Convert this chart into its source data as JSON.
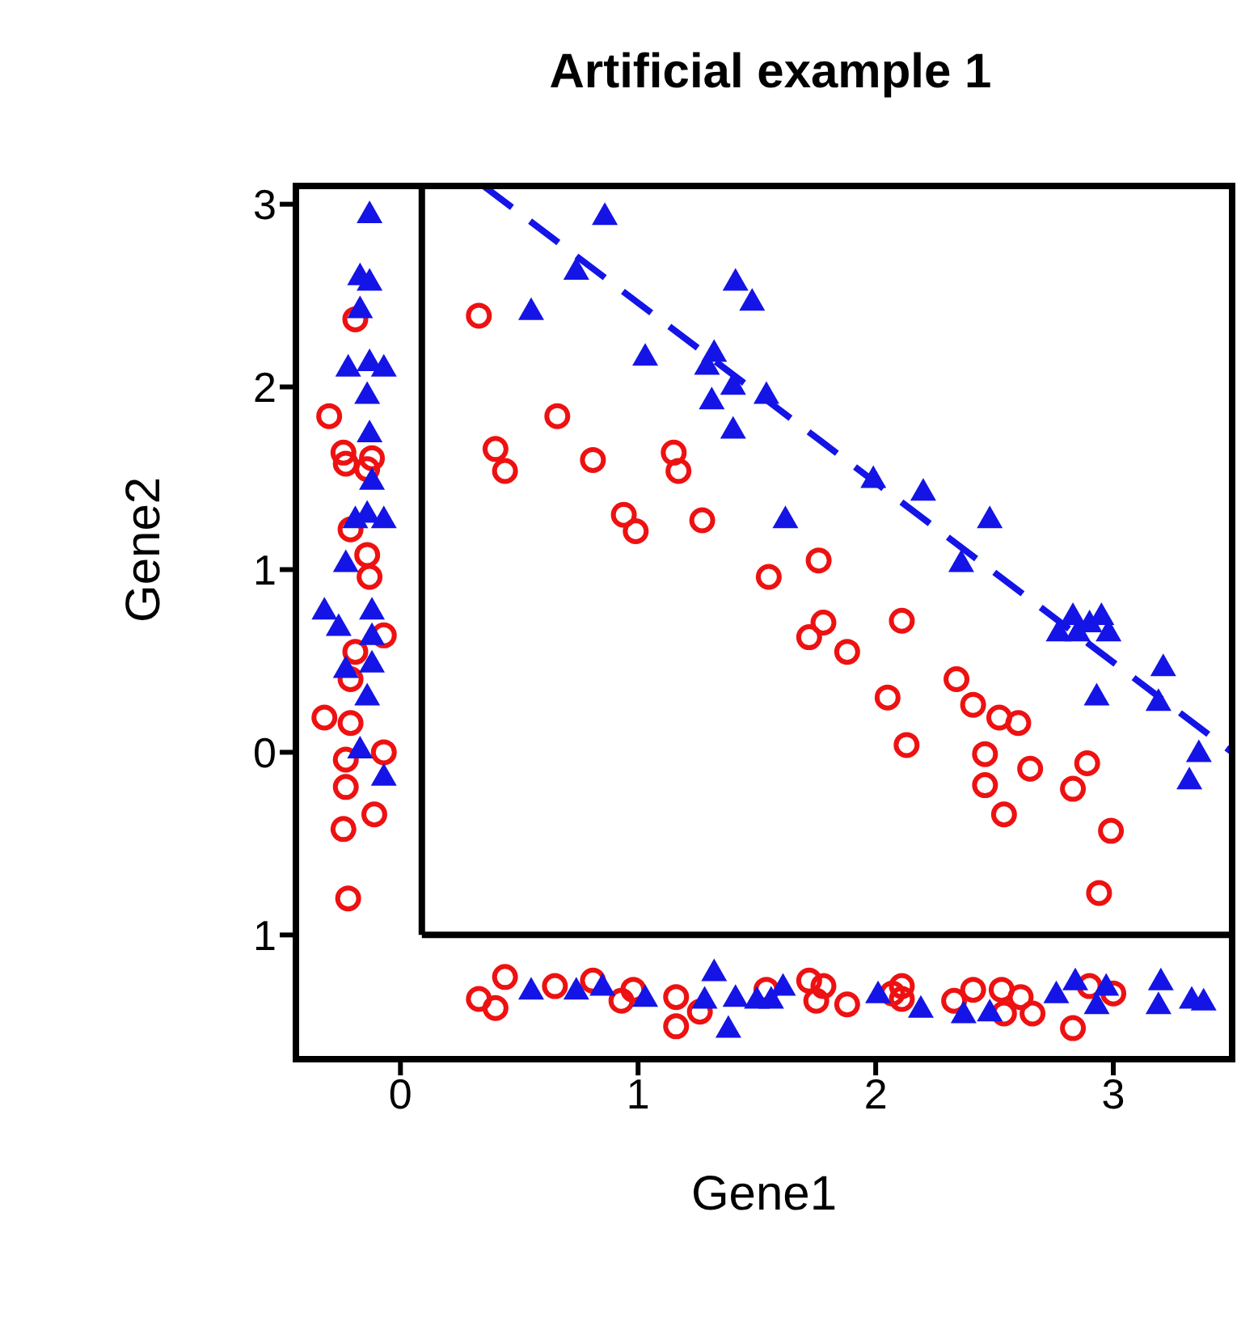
{
  "chart_data": {
    "type": "scatter",
    "title": "Artificial example 1",
    "xlabel": "Gene1",
    "ylabel": "Gene2",
    "xlim": [
      -0.44,
      3.5
    ],
    "ylim": [
      -1.68,
      3.1
    ],
    "xticks": [
      0,
      1,
      2,
      3
    ],
    "yticks": [
      {
        "value": -1,
        "label": "1"
      },
      0,
      1,
      2,
      3
    ],
    "grid": false,
    "legend": false,
    "ref_lines": [
      {
        "axis": "y",
        "value": -1,
        "color": "#000000"
      },
      {
        "axis": "x",
        "value": 0.09,
        "color": "#000000"
      }
    ],
    "series": [
      {
        "type": "scatter",
        "marker": "circle",
        "color": "#ee1111",
        "x": [
          0.33,
          0.4,
          0.44,
          0.66,
          0.81,
          0.94,
          0.99,
          1.15,
          1.17,
          1.27,
          1.55,
          1.76,
          1.78,
          1.72,
          1.88,
          2.11,
          2.34,
          2.05,
          2.41,
          2.13,
          2.52,
          2.6,
          2.46,
          2.65,
          2.46,
          2.54,
          2.89,
          2.83,
          2.99,
          2.94
        ],
        "values": [
          2.39,
          1.66,
          1.54,
          1.84,
          1.6,
          1.3,
          1.21,
          1.64,
          1.54,
          1.27,
          0.96,
          1.05,
          0.71,
          0.63,
          0.55,
          0.72,
          0.4,
          0.3,
          0.26,
          0.04,
          0.19,
          0.16,
          -0.01,
          -0.09,
          -0.18,
          -0.34,
          -0.06,
          -0.2,
          -0.43,
          -0.77
        ]
      },
      {
        "type": "scatter",
        "marker": "triangle",
        "color": "#1414e6",
        "x": [
          0.86,
          0.74,
          0.55,
          1.03,
          1.41,
          1.48,
          1.29,
          1.32,
          1.4,
          1.31,
          1.4,
          1.54,
          1.62,
          1.99,
          2.2,
          2.48,
          2.36,
          2.83,
          2.9,
          2.95,
          2.85,
          2.98,
          2.77,
          3.21,
          3.19,
          2.93,
          3.36,
          3.32
        ],
        "values": [
          2.94,
          2.64,
          2.42,
          2.17,
          2.58,
          2.47,
          2.12,
          2.19,
          2.01,
          1.93,
          1.77,
          1.96,
          1.28,
          1.5,
          1.43,
          1.28,
          1.04,
          0.75,
          0.71,
          0.75,
          0.66,
          0.66,
          0.66,
          0.47,
          0.28,
          0.31,
          0.0,
          -0.15
        ]
      },
      {
        "type": "scatter",
        "marker": "circle",
        "color": "#ee1111",
        "x": [
          -0.19,
          -0.3,
          -0.24,
          -0.23,
          -0.12,
          -0.14,
          -0.21,
          -0.14,
          -0.13,
          -0.07,
          -0.19,
          -0.21,
          -0.32,
          -0.21,
          -0.07,
          -0.23,
          -0.23,
          -0.11,
          -0.24,
          -0.22
        ],
        "values": [
          2.37,
          1.84,
          1.64,
          1.58,
          1.61,
          1.55,
          1.22,
          1.08,
          0.96,
          0.64,
          0.55,
          0.4,
          0.19,
          0.16,
          0.0,
          -0.04,
          -0.19,
          -0.34,
          -0.42,
          -0.8
        ]
      },
      {
        "type": "scatter",
        "marker": "triangle",
        "color": "#1414e6",
        "x": [
          -0.13,
          -0.17,
          -0.13,
          -0.17,
          -0.22,
          -0.13,
          -0.07,
          -0.14,
          -0.13,
          -0.12,
          -0.14,
          -0.19,
          -0.07,
          -0.23,
          -0.32,
          -0.26,
          -0.12,
          -0.12,
          -0.23,
          -0.12,
          -0.14,
          -0.17,
          -0.07
        ],
        "values": [
          2.95,
          2.61,
          2.58,
          2.43,
          2.11,
          2.14,
          2.11,
          1.96,
          1.75,
          1.49,
          1.31,
          1.28,
          1.28,
          1.04,
          0.78,
          0.69,
          0.78,
          0.64,
          0.46,
          0.49,
          0.31,
          0.02,
          -0.13
        ]
      },
      {
        "type": "scatter",
        "marker": "circle",
        "color": "#ee1111",
        "x": [
          0.33,
          0.44,
          0.4,
          0.65,
          0.81,
          0.93,
          0.98,
          1.16,
          1.16,
          1.26,
          1.54,
          1.72,
          1.78,
          1.75,
          1.88,
          2.07,
          2.11,
          2.11,
          2.33,
          2.41,
          2.53,
          2.54,
          2.61,
          2.66,
          2.9,
          3.0,
          2.83
        ],
        "values": [
          -1.35,
          -1.23,
          -1.4,
          -1.28,
          -1.25,
          -1.36,
          -1.3,
          -1.34,
          -1.5,
          -1.42,
          -1.3,
          -1.25,
          -1.28,
          -1.36,
          -1.38,
          -1.32,
          -1.28,
          -1.35,
          -1.36,
          -1.3,
          -1.3,
          -1.43,
          -1.34,
          -1.43,
          -1.28,
          -1.32,
          -1.51
        ]
      },
      {
        "type": "scatter",
        "marker": "triangle",
        "color": "#1414e6",
        "x": [
          0.55,
          0.74,
          0.85,
          1.03,
          1.32,
          1.28,
          1.41,
          1.38,
          1.5,
          1.61,
          1.56,
          2.01,
          2.19,
          2.37,
          2.48,
          2.76,
          2.84,
          2.93,
          2.97,
          3.2,
          3.19,
          3.33,
          3.38
        ],
        "values": [
          -1.3,
          -1.3,
          -1.28,
          -1.34,
          -1.2,
          -1.35,
          -1.34,
          -1.51,
          -1.35,
          -1.28,
          -1.35,
          -1.32,
          -1.4,
          -1.43,
          -1.42,
          -1.32,
          -1.25,
          -1.38,
          -1.28,
          -1.25,
          -1.38,
          -1.35,
          -1.36
        ]
      },
      {
        "type": "line",
        "line_style": "dashed",
        "marker": "none",
        "color": "#1414e6",
        "x": [
          0.35,
          3.5
        ],
        "values": [
          3.1,
          0.0
        ]
      }
    ]
  }
}
